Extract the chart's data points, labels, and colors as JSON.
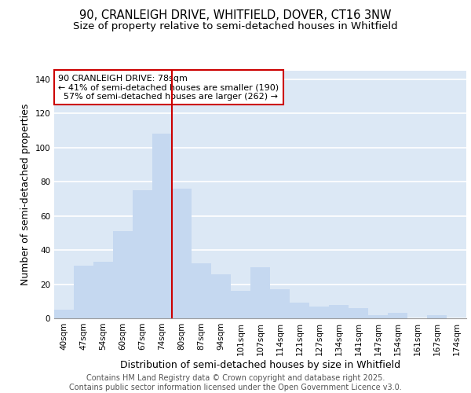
{
  "title_line1": "90, CRANLEIGH DRIVE, WHITFIELD, DOVER, CT16 3NW",
  "title_line2": "Size of property relative to semi-detached houses in Whitfield",
  "xlabel": "Distribution of semi-detached houses by size in Whitfield",
  "ylabel": "Number of semi-detached properties",
  "categories": [
    "40sqm",
    "47sqm",
    "54sqm",
    "60sqm",
    "67sqm",
    "74sqm",
    "80sqm",
    "87sqm",
    "94sqm",
    "101sqm",
    "107sqm",
    "114sqm",
    "121sqm",
    "127sqm",
    "134sqm",
    "141sqm",
    "147sqm",
    "154sqm",
    "161sqm",
    "167sqm",
    "174sqm"
  ],
  "values": [
    5,
    31,
    33,
    51,
    75,
    108,
    76,
    32,
    26,
    16,
    30,
    17,
    9,
    7,
    8,
    6,
    2,
    3,
    0,
    2,
    0
  ],
  "bar_color": "#c5d8f0",
  "vline_x": 6,
  "vline_color": "#cc0000",
  "property_value": 78,
  "pct_smaller": 41,
  "pct_larger": 57,
  "n_smaller": 190,
  "n_larger": 262,
  "annotation_box_color": "#cc0000",
  "ylim": [
    0,
    145
  ],
  "yticks": [
    0,
    20,
    40,
    60,
    80,
    100,
    120,
    140
  ],
  "footer_line1": "Contains HM Land Registry data © Crown copyright and database right 2025.",
  "footer_line2": "Contains public sector information licensed under the Open Government Licence v3.0.",
  "background_color": "#dce8f5",
  "plot_bg_color": "#dce8f5",
  "title_fontsize": 10.5,
  "subtitle_fontsize": 9.5,
  "axis_label_fontsize": 9,
  "tick_fontsize": 7.5,
  "footer_fontsize": 7,
  "annot_fontsize": 8
}
